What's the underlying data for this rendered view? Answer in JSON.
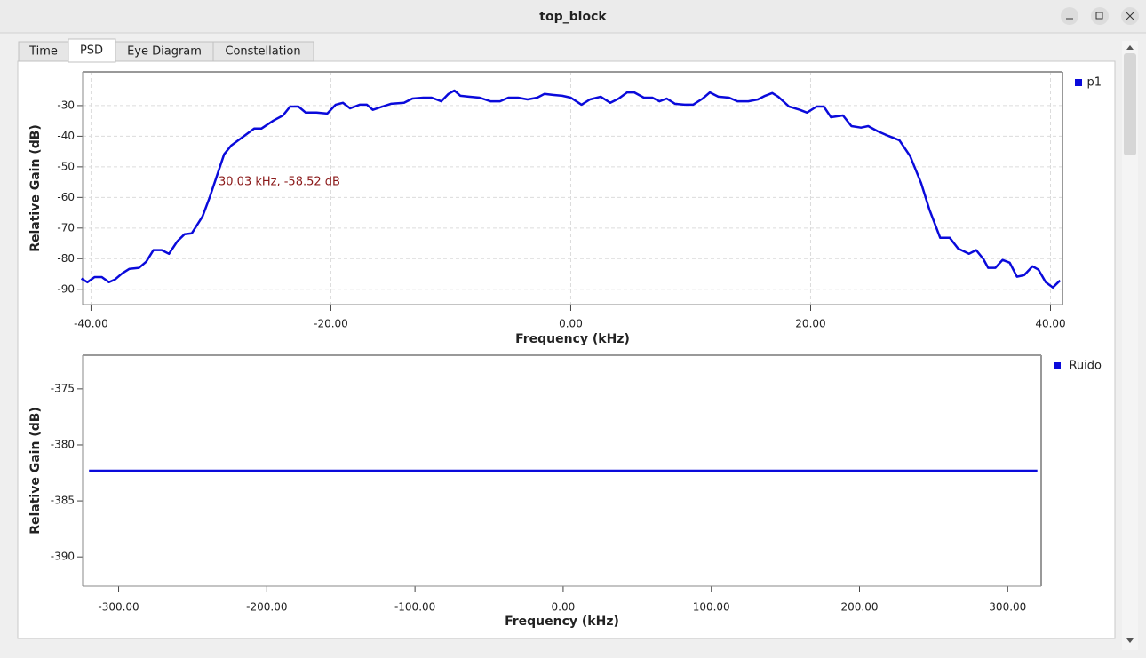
{
  "window": {
    "title": "top_block"
  },
  "tabs": [
    "Time",
    "PSD",
    "Eye Diagram",
    "Constellation"
  ],
  "chart_data": [
    {
      "type": "line",
      "xlabel": "Frequency (kHz)",
      "ylabel": "Relative Gain (dB)",
      "annotations": [
        "30.03 kHz, -58.52 dB"
      ],
      "x": [
        -40.8,
        -40.3,
        -39.7,
        -39.1,
        -38.5,
        -38.0,
        -37.4,
        -36.8,
        -36.0,
        -35.4,
        -34.8,
        -34.1,
        -33.5,
        -32.8,
        -32.2,
        -31.6,
        -30.7,
        -30.1,
        -29.5,
        -28.9,
        -28.3,
        -27.4,
        -26.4,
        -25.8,
        -24.8,
        -24.0,
        -23.4,
        -22.7,
        -22.1,
        -21.2,
        -20.3,
        -19.6,
        -19.0,
        -18.4,
        -17.6,
        -17.0,
        -16.5,
        -15.7,
        -15.0,
        -13.9,
        -13.2,
        -12.3,
        -11.6,
        -10.8,
        -10.2,
        -9.7,
        -9.2,
        -8.5,
        -7.6,
        -6.7,
        -5.9,
        -5.2,
        -4.4,
        -3.6,
        -2.8,
        -2.2,
        -1.5,
        -0.7,
        0.0,
        0.9,
        1.6,
        2.5,
        3.3,
        4.0,
        4.7,
        5.3,
        6.1,
        6.8,
        7.4,
        8.0,
        8.7,
        9.5,
        10.2,
        11.0,
        11.6,
        12.3,
        13.2,
        13.9,
        14.8,
        15.6,
        16.2,
        16.8,
        17.3,
        18.2,
        19.1,
        19.7,
        20.5,
        21.1,
        21.7,
        22.7,
        23.4,
        24.2,
        24.8,
        25.6,
        26.5,
        27.4,
        28.3,
        29.2,
        29.9,
        30.8,
        31.6,
        32.3,
        33.2,
        33.8,
        34.4,
        34.8,
        35.4,
        36.0,
        36.6,
        37.2,
        37.8,
        38.5,
        39.0,
        39.6,
        40.2,
        40.8
      ],
      "series": [
        {
          "name": "p1",
          "color": "#0a0adb",
          "values": [
            -86.5,
            -87.7,
            -86.0,
            -86.0,
            -87.7,
            -86.8,
            -84.8,
            -83.3,
            -83.0,
            -81.0,
            -77.2,
            -77.2,
            -78.4,
            -74.3,
            -72.0,
            -71.7,
            -66.2,
            -59.9,
            -52.9,
            -45.9,
            -43.0,
            -40.4,
            -37.5,
            -37.5,
            -34.9,
            -33.2,
            -30.3,
            -30.3,
            -32.3,
            -32.3,
            -32.6,
            -29.7,
            -29.1,
            -30.9,
            -29.7,
            -29.7,
            -31.4,
            -30.3,
            -29.4,
            -29.1,
            -27.7,
            -27.4,
            -27.4,
            -28.6,
            -26.2,
            -25.1,
            -26.8,
            -27.1,
            -27.4,
            -28.6,
            -28.6,
            -27.4,
            -27.4,
            -28.0,
            -27.4,
            -26.2,
            -26.5,
            -26.8,
            -27.4,
            -29.7,
            -28.0,
            -27.1,
            -29.1,
            -27.7,
            -25.7,
            -25.7,
            -27.4,
            -27.4,
            -28.6,
            -27.7,
            -29.4,
            -29.7,
            -29.7,
            -27.7,
            -25.7,
            -27.1,
            -27.4,
            -28.6,
            -28.6,
            -28.0,
            -26.8,
            -25.9,
            -27.1,
            -30.3,
            -31.4,
            -32.3,
            -30.3,
            -30.3,
            -33.8,
            -33.2,
            -36.7,
            -37.2,
            -36.7,
            -38.4,
            -39.9,
            -41.3,
            -46.5,
            -55.2,
            -63.9,
            -73.2,
            -73.2,
            -76.7,
            -78.4,
            -77.2,
            -80.1,
            -83.0,
            -83.0,
            -80.4,
            -81.3,
            -85.9,
            -85.4,
            -82.5,
            -83.6,
            -87.7,
            -89.4,
            -87.1
          ]
        }
      ],
      "xlim": [
        -40.7,
        41.0
      ],
      "ylim": [
        -95,
        -19
      ],
      "xticks": [
        {
          "value": -40,
          "label": "-40.00"
        },
        {
          "value": -20,
          "label": "-20.00"
        },
        {
          "value": 0,
          "label": "0.00"
        },
        {
          "value": 20,
          "label": "20.00"
        },
        {
          "value": 40,
          "label": "40.00"
        }
      ],
      "yticks": [
        -90,
        -80,
        -70,
        -60,
        -50,
        -40,
        -30
      ],
      "grid": true,
      "legend": "upper right"
    },
    {
      "type": "line",
      "xlabel": "Frequency (kHz)",
      "ylabel": "Relative Gain (dB)",
      "x": [
        -320,
        320
      ],
      "series": [
        {
          "name": "Ruido",
          "color": "#0a0adb",
          "values": [
            -382.3,
            -382.3
          ]
        }
      ],
      "xlim": [
        -324.3,
        322.6
      ],
      "ylim": [
        -392.6,
        -372
      ],
      "xticks": [
        {
          "value": -300,
          "label": "-300.00"
        },
        {
          "value": -200,
          "label": "-200.00"
        },
        {
          "value": -100,
          "label": "-100.00"
        },
        {
          "value": 0,
          "label": "0.00"
        },
        {
          "value": 100,
          "label": "100.00"
        },
        {
          "value": 200,
          "label": "200.00"
        },
        {
          "value": 300,
          "label": "300.00"
        }
      ],
      "yticks": [
        -390,
        -385,
        -380,
        -375
      ],
      "grid": false,
      "legend": "upper right"
    }
  ]
}
